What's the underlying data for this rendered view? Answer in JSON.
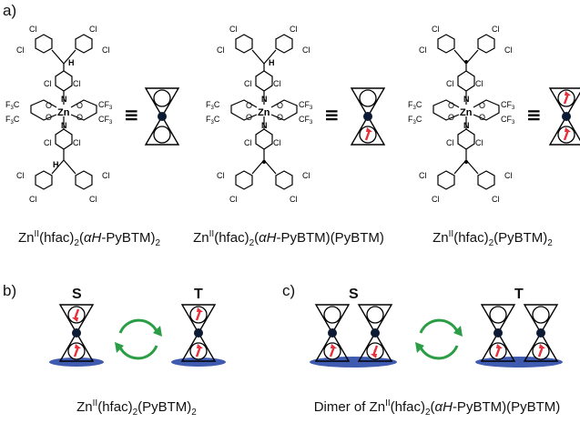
{
  "panels": {
    "a": "a)",
    "b": "b)",
    "c": "c)"
  },
  "equiv_symbol": "≡",
  "molecules": [
    {
      "pre": "Zn",
      "ox": "II",
      "mid": "(hfac)",
      "sub2": "2",
      "lp": "(",
      "italic": "αH",
      "post": "-PyBTM)",
      "tail": "",
      "sub_end": "2"
    },
    {
      "pre": "Zn",
      "ox": "II",
      "mid": "(hfac)",
      "sub2": "2",
      "lp": "(",
      "italic": "αH",
      "post": "-PyBTM)",
      "tail": "(PyBTM)",
      "sub_end": ""
    },
    {
      "pre": "Zn",
      "ox": "II",
      "mid": "(hfac)",
      "sub2": "2",
      "lp": "",
      "italic": "",
      "post": "",
      "tail": "(PyBTM)",
      "sub_end": "2"
    }
  ],
  "atoms": {
    "cl": "Cl",
    "n": "N",
    "zn": "Zn",
    "o": "O",
    "h": "H",
    "cf3": "CF",
    "three": "3",
    "f3c": "F",
    "fthree": "3",
    "c": "C"
  },
  "state_labels": {
    "singlet": "S",
    "triplet": "T"
  },
  "caption_b": {
    "pre": "Zn",
    "ox": "II",
    "mid": "(hfac)",
    "sub2": "2",
    "tail": "(PyBTM)",
    "sub_end": "2"
  },
  "caption_c": {
    "prefix": "Dimer of Zn",
    "ox": "II",
    "mid": "(hfac)",
    "sub2": "2",
    "lp": "(",
    "italic": "αH",
    "post": "-PyBTM)",
    "tail": "(PyBTM)"
  },
  "colors": {
    "spin_arrow": "#e8303a",
    "exchange_arrow": "#2a9d45",
    "contact": "#3f5bb0",
    "node": "#0d1a33"
  }
}
